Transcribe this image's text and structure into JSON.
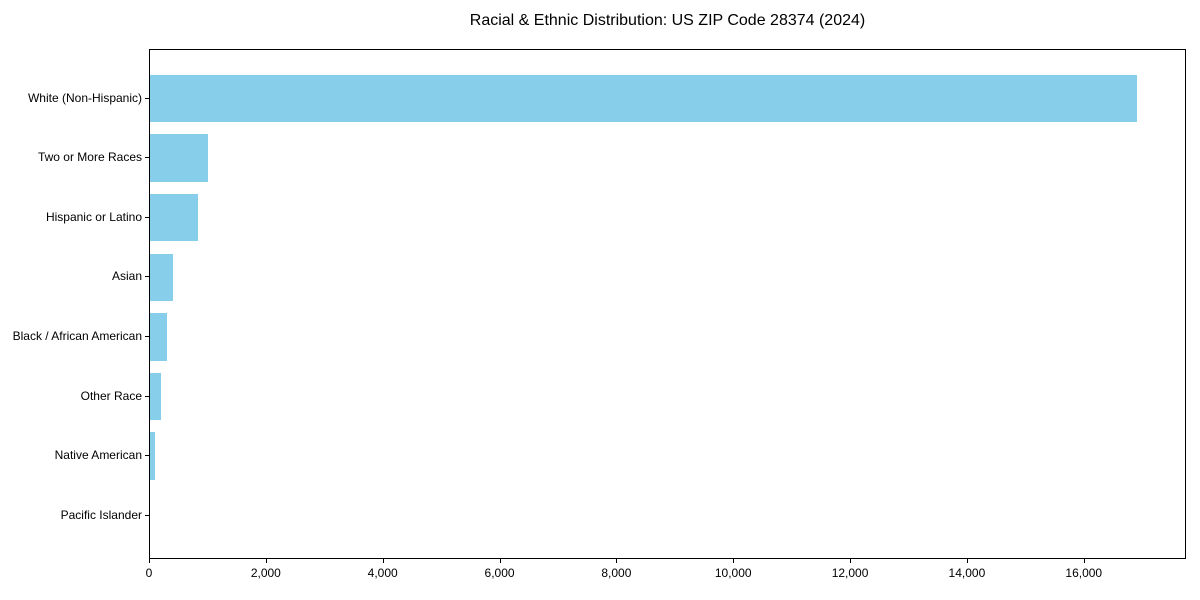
{
  "window": {
    "background_color": "#ffffff",
    "text_color": "#000000"
  },
  "chart_data": {
    "type": "bar",
    "orientation": "horizontal",
    "title": "Racial & Ethnic Distribution: US ZIP Code 28374 (2024)",
    "categories": [
      "White (Non-Hispanic)",
      "Two or More Races",
      "Hispanic or Latino",
      "Asian",
      "Black / African American",
      "Other Race",
      "Native American",
      "Pacific Islander"
    ],
    "values": [
      16900,
      990,
      820,
      400,
      290,
      180,
      90,
      0
    ],
    "xlabel": "",
    "ylabel": "",
    "xlim": [
      0,
      17750
    ],
    "xticks": [
      0,
      2000,
      4000,
      6000,
      8000,
      10000,
      12000,
      14000,
      16000
    ],
    "xtick_labels": [
      "0",
      "2,000",
      "4,000",
      "6,000",
      "8,000",
      "10,000",
      "12,000",
      "14,000",
      "16,000"
    ],
    "bar_color": "#87CEEB",
    "grid": false,
    "legend": "none",
    "frame": "full-box"
  }
}
